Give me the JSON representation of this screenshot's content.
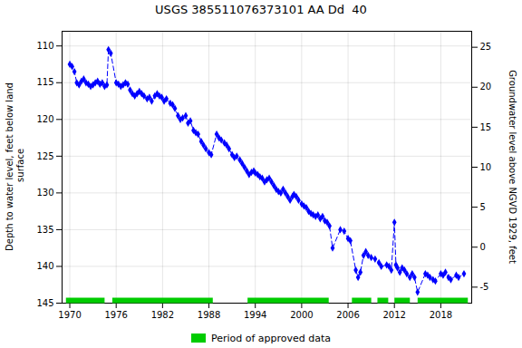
{
  "chart_data": {
    "type": "line",
    "title": "USGS 385511076373101 AA Dd  40",
    "ylabel": "Depth to water level, feet below land\n surface",
    "y2label": "Groundwater level above NGVD 1929, feet",
    "x": [
      1970.0,
      1970.3,
      1970.6,
      1970.9,
      1971.2,
      1971.5,
      1971.8,
      1972.1,
      1972.4,
      1972.7,
      1973.0,
      1973.3,
      1973.6,
      1973.9,
      1974.2,
      1974.5,
      1974.8,
      1975.0,
      1975.3,
      1976.0,
      1976.3,
      1976.6,
      1976.9,
      1977.2,
      1977.5,
      1977.8,
      1978.1,
      1978.4,
      1978.7,
      1979.0,
      1979.3,
      1979.6,
      1980.0,
      1980.3,
      1980.6,
      1981.0,
      1981.3,
      1981.6,
      1981.9,
      1982.2,
      1982.5,
      1983.0,
      1983.3,
      1983.6,
      1984.0,
      1984.3,
      1984.6,
      1985.0,
      1985.3,
      1985.6,
      1986.0,
      1986.3,
      1986.6,
      1987.0,
      1987.3,
      1987.6,
      1988.0,
      1988.3,
      1989.0,
      1989.3,
      1989.6,
      1990.0,
      1990.3,
      1990.6,
      1991.0,
      1991.3,
      1991.6,
      1992.0,
      1992.3,
      1992.6,
      1992.9,
      1993.2,
      1993.5,
      1993.8,
      1994.0,
      1994.3,
      1994.6,
      1994.9,
      1995.2,
      1995.5,
      1995.8,
      1996.1,
      1996.4,
      1996.7,
      1997.0,
      1997.3,
      1997.6,
      1997.9,
      1998.2,
      1998.5,
      1998.8,
      1999.0,
      1999.3,
      1999.6,
      2000.0,
      2000.3,
      2000.6,
      2000.9,
      2001.2,
      2001.5,
      2001.8,
      2002.1,
      2002.4,
      2002.7,
      2003.0,
      2003.3,
      2003.6,
      2004.0,
      2005.0,
      2005.5,
      2006.0,
      2006.3,
      2007.0,
      2007.3,
      2007.6,
      2008.0,
      2008.3,
      2008.6,
      2009.0,
      2009.5,
      2010.0,
      2010.3,
      2011.0,
      2011.3,
      2011.6,
      2012.0,
      2012.2,
      2012.4,
      2012.7,
      2013.0,
      2013.3,
      2013.6,
      2014.0,
      2014.3,
      2014.6,
      2015.0,
      2016.0,
      2016.3,
      2016.6,
      2017.0,
      2017.3,
      2018.0,
      2018.3,
      2018.6,
      2019.0,
      2019.3,
      2020.0,
      2020.3,
      2021.0
    ],
    "values": [
      112.5,
      112.8,
      113.5,
      115.0,
      115.3,
      114.8,
      114.5,
      115.0,
      115.2,
      115.5,
      115.3,
      115.0,
      114.8,
      115.2,
      115.0,
      115.5,
      115.3,
      110.5,
      111.0,
      115.0,
      115.2,
      115.5,
      115.3,
      115.0,
      115.2,
      116.0,
      116.5,
      116.8,
      116.5,
      116.2,
      116.5,
      116.8,
      117.2,
      117.0,
      117.5,
      116.8,
      116.5,
      116.8,
      117.0,
      117.5,
      117.2,
      117.8,
      118.0,
      118.5,
      119.5,
      120.0,
      119.8,
      119.5,
      120.5,
      120.2,
      121.5,
      121.8,
      122.0,
      123.0,
      123.5,
      124.0,
      124.5,
      124.8,
      122.0,
      122.5,
      122.8,
      123.2,
      123.5,
      124.0,
      124.8,
      125.2,
      125.0,
      125.5,
      126.0,
      126.5,
      127.0,
      127.5,
      127.2,
      127.0,
      127.3,
      127.5,
      127.8,
      128.0,
      128.5,
      128.2,
      128.0,
      128.5,
      129.0,
      129.5,
      129.8,
      130.0,
      129.5,
      130.0,
      130.5,
      131.0,
      130.5,
      130.2,
      130.5,
      131.0,
      131.5,
      131.8,
      132.0,
      132.5,
      132.8,
      133.0,
      133.2,
      133.0,
      133.5,
      133.2,
      133.8,
      134.0,
      134.5,
      137.5,
      135.0,
      135.2,
      136.2,
      136.5,
      140.5,
      141.5,
      140.8,
      138.5,
      138.0,
      138.5,
      138.8,
      139.0,
      139.5,
      140.0,
      139.8,
      140.0,
      140.5,
      134.0,
      139.8,
      140.2,
      140.8,
      140.2,
      140.5,
      141.0,
      141.5,
      141.0,
      141.5,
      143.5,
      141.0,
      141.2,
      141.5,
      141.8,
      142.0,
      141.0,
      141.2,
      140.8,
      141.5,
      141.8,
      141.2,
      141.5,
      141.0
    ],
    "color": "#0000ff",
    "marker": "diamond",
    "line_style": "dashed",
    "xlim": [
      1969,
      2022
    ],
    "xticks": [
      1970,
      1976,
      1982,
      1988,
      1994,
      2000,
      2006,
      2012,
      2018
    ],
    "ylim": [
      145,
      108
    ],
    "yticks": [
      110,
      115,
      120,
      125,
      130,
      135,
      140,
      145
    ],
    "y2lim": [
      -7,
      27
    ],
    "y2ticks": [
      -5,
      0,
      5,
      10,
      15,
      20,
      25
    ],
    "grid": true,
    "legend": "bottom",
    "approved_periods": {
      "name": "Period of approved data",
      "color": "#00cc00",
      "ranges": [
        [
          1969.5,
          1974.5
        ],
        [
          1975.5,
          1988.5
        ],
        [
          1993.0,
          2003.5
        ],
        [
          2006.5,
          2009.0
        ],
        [
          2009.8,
          2011.2
        ],
        [
          2012.0,
          2014.0
        ],
        [
          2015.0,
          2021.5
        ]
      ]
    }
  }
}
